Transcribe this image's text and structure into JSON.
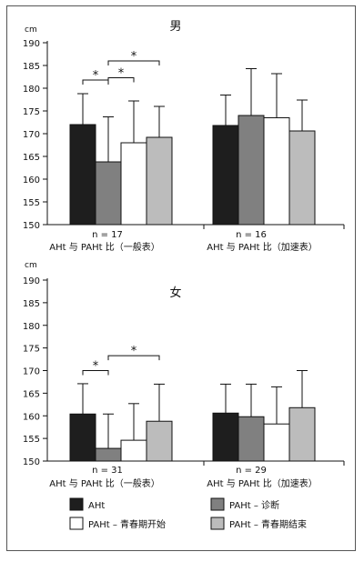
{
  "colors": {
    "AHt": "#1e1e1e",
    "PAHt_diagnosis": "#808080",
    "PAHt_puberty_start": "#ffffff",
    "PAHt_puberty_end": "#bcbcbc",
    "axis": "#111111"
  },
  "legend": [
    {
      "key": "AHt",
      "label": "AHt"
    },
    {
      "key": "PAHt_diagnosis",
      "label": "PAHt – 诊断"
    },
    {
      "key": "PAHt_puberty_start",
      "label": "PAHt – 青春期开始"
    },
    {
      "key": "PAHt_puberty_end",
      "label": "PAHt – 青春期结束"
    }
  ],
  "chart_data": [
    {
      "type": "bar",
      "title": "男",
      "unit": "cm",
      "ylim": [
        150,
        190
      ],
      "yticks": [
        150,
        155,
        160,
        165,
        170,
        175,
        180,
        185,
        190
      ],
      "groups": [
        {
          "n_label": "n = 17",
          "group_label": "AHt 与 PAHt 比（一般表）"
        },
        {
          "n_label": "n = 16",
          "group_label": "AHt 与 PAHt 比（加速表）"
        }
      ],
      "series": [
        {
          "name": "AHt",
          "key": "AHt",
          "values": [
            172.0,
            171.8
          ],
          "errors": [
            178.8,
            178.5
          ]
        },
        {
          "name": "PAHt – 诊断",
          "key": "PAHt_diagnosis",
          "values": [
            163.8,
            174.0
          ],
          "errors": [
            173.7,
            184.3
          ]
        },
        {
          "name": "PAHt – 青春期开始",
          "key": "PAHt_puberty_start",
          "values": [
            168.0,
            173.5
          ],
          "errors": [
            177.2,
            183.2
          ]
        },
        {
          "name": "PAHt – 青春期结束",
          "key": "PAHt_puberty_end",
          "values": [
            169.2,
            170.6
          ],
          "errors": [
            176.0,
            177.4
          ]
        }
      ],
      "significance": [
        {
          "group": 0,
          "from": 0,
          "to": 1,
          "level": 181.8,
          "label": "*"
        },
        {
          "group": 0,
          "from": 1,
          "to": 2,
          "level": 182.3,
          "label": "*"
        },
        {
          "group": 0,
          "from": 1,
          "to": 3,
          "level": 186.0,
          "label": "*"
        }
      ]
    },
    {
      "type": "bar",
      "title": "女",
      "unit": "cm",
      "ylim": [
        150,
        190
      ],
      "yticks": [
        150,
        155,
        160,
        165,
        170,
        175,
        180,
        185,
        190
      ],
      "groups": [
        {
          "n_label": "n = 31",
          "group_label": "AHt 与 PAHt 比（一般表）"
        },
        {
          "n_label": "n = 29",
          "group_label": "AHt 与 PAHt 比（加速表）"
        }
      ],
      "series": [
        {
          "name": "AHt",
          "key": "AHt",
          "values": [
            160.4,
            160.6
          ],
          "errors": [
            167.1,
            167.0
          ]
        },
        {
          "name": "PAHt – 诊断",
          "key": "PAHt_diagnosis",
          "values": [
            152.8,
            159.8
          ],
          "errors": [
            160.4,
            167.0
          ]
        },
        {
          "name": "PAHt – 青春期开始",
          "key": "PAHt_puberty_start",
          "values": [
            154.6,
            158.2
          ],
          "errors": [
            162.7,
            166.4
          ]
        },
        {
          "name": "PAHt – 青春期结束",
          "key": "PAHt_puberty_end",
          "values": [
            158.8,
            161.8
          ],
          "errors": [
            167.0,
            170.0
          ]
        }
      ],
      "significance": [
        {
          "group": 0,
          "from": 0,
          "to": 1,
          "level": 170.0,
          "label": "*"
        },
        {
          "group": 0,
          "from": 1,
          "to": 3,
          "level": 173.3,
          "label": "*"
        }
      ]
    }
  ]
}
